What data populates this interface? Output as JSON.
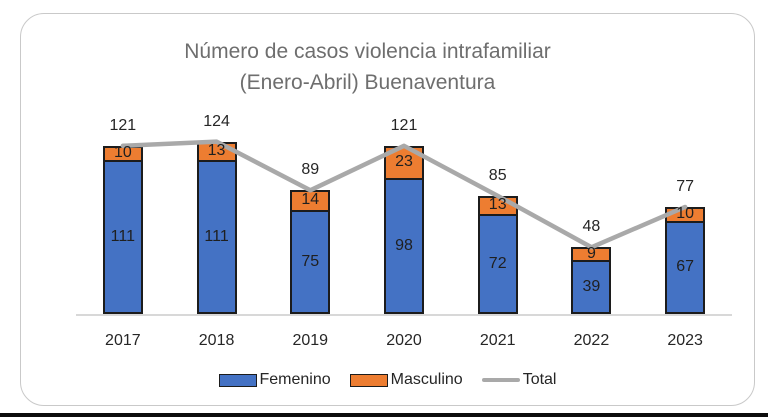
{
  "chart_data": {
    "type": "bar",
    "subtype": "stacked-bar-with-line",
    "title_line1": "Número de casos violencia intrafamiliar",
    "title_line2": "(Enero-Abril) Buenaventura",
    "categories": [
      "2017",
      "2018",
      "2019",
      "2020",
      "2021",
      "2022",
      "2023"
    ],
    "series": [
      {
        "name": "Femenino",
        "type": "bar",
        "color": "#4472C4",
        "values": [
          111,
          111,
          75,
          98,
          72,
          39,
          67
        ]
      },
      {
        "name": "Masculino",
        "type": "bar",
        "color": "#ED7D31",
        "values": [
          10,
          13,
          14,
          23,
          13,
          9,
          10
        ]
      },
      {
        "name": "Total",
        "type": "line",
        "color": "#A9A9A9",
        "values": [
          121,
          124,
          89,
          121,
          85,
          48,
          77
        ]
      }
    ],
    "stacked": true,
    "data_labels": true,
    "grid": false,
    "legend_position": "bottom",
    "y_axis_visible": false,
    "ylim": [
      0,
      135
    ],
    "colors": {
      "bar_outline": "#1c1c1c",
      "axis_line": "#d8d8d8",
      "title_text": "#6e6e6e",
      "label_text": "#262626"
    }
  }
}
